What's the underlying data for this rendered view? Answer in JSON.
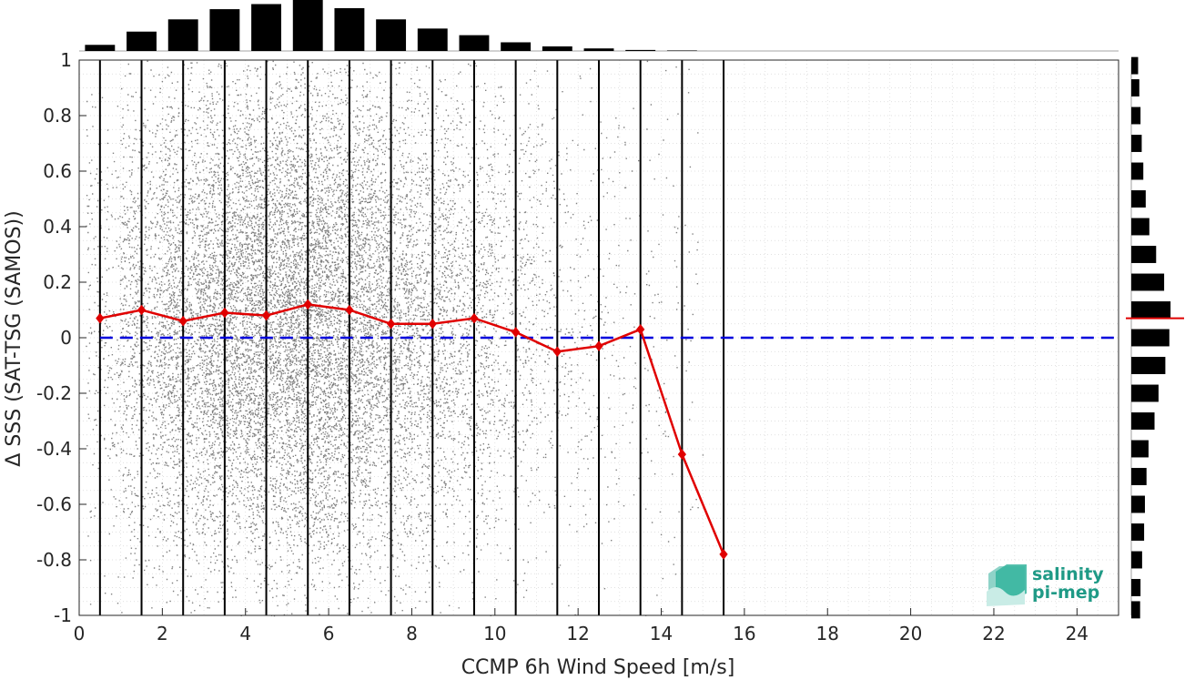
{
  "chart_data": {
    "type": "scatter",
    "xlabel": "CCMP 6h Wind Speed [m/s]",
    "ylabel": "Δ SSS (SAT-TSG (SAMOS))",
    "xlim": [
      0,
      25
    ],
    "ylim": [
      -1,
      1
    ],
    "xticks": [
      "0",
      "2",
      "4",
      "6",
      "8",
      "10",
      "12",
      "14",
      "16",
      "18",
      "20",
      "22",
      "24"
    ],
    "yticks": [
      "-1",
      "-0.8",
      "-0.6",
      "-0.4",
      "-0.2",
      "0",
      "0.2",
      "0.4",
      "0.6",
      "0.8",
      "1"
    ],
    "grid": true,
    "bin_edges": [
      0.5,
      1.5,
      2.5,
      3.5,
      4.5,
      5.5,
      6.5,
      7.5,
      8.5,
      9.5,
      10.5,
      11.5,
      12.5,
      13.5,
      14.5,
      15.5
    ],
    "binned_mean": {
      "x": [
        0.5,
        1.5,
        2.5,
        3.5,
        4.5,
        5.5,
        6.5,
        7.5,
        8.5,
        9.5,
        10.5,
        11.5,
        12.5,
        13.5,
        14.5,
        15.5
      ],
      "y": [
        0.07,
        0.1,
        0.06,
        0.09,
        0.08,
        0.12,
        0.1,
        0.05,
        0.05,
        0.07,
        0.02,
        -0.05,
        -0.03,
        0.03,
        -0.42,
        -0.78
      ],
      "color": "#e00000"
    },
    "zero_line": {
      "y": 0,
      "color": "#0000dd",
      "style": "dashed"
    },
    "top_histogram": {
      "x": [
        0.5,
        1.5,
        2.5,
        3.5,
        4.5,
        5.5,
        6.5,
        7.5,
        8.5,
        9.5,
        10.5,
        11.5,
        12.5,
        13.5,
        14.5
      ],
      "counts": [
        0.12,
        0.38,
        0.62,
        0.82,
        0.92,
        1.0,
        0.84,
        0.62,
        0.44,
        0.31,
        0.17,
        0.09,
        0.05,
        0.02,
        0.01
      ]
    },
    "right_histogram": {
      "y": [
        -0.98,
        -0.9,
        -0.8,
        -0.7,
        -0.6,
        -0.5,
        -0.4,
        -0.3,
        -0.2,
        -0.1,
        0.0,
        0.1,
        0.2,
        0.3,
        0.4,
        0.5,
        0.6,
        0.7,
        0.8,
        0.9,
        0.98
      ],
      "counts": [
        0.22,
        0.23,
        0.27,
        0.32,
        0.34,
        0.38,
        0.43,
        0.58,
        0.68,
        0.85,
        0.95,
        0.98,
        0.82,
        0.62,
        0.45,
        0.36,
        0.3,
        0.26,
        0.23,
        0.2,
        0.17
      ],
      "mean_marker": 0.07,
      "mean_color": "#e00000"
    },
    "scatter_color": "#808080"
  },
  "logo": {
    "line1": "salinity",
    "line2": "pi-mep",
    "color": "#1f9a86"
  }
}
